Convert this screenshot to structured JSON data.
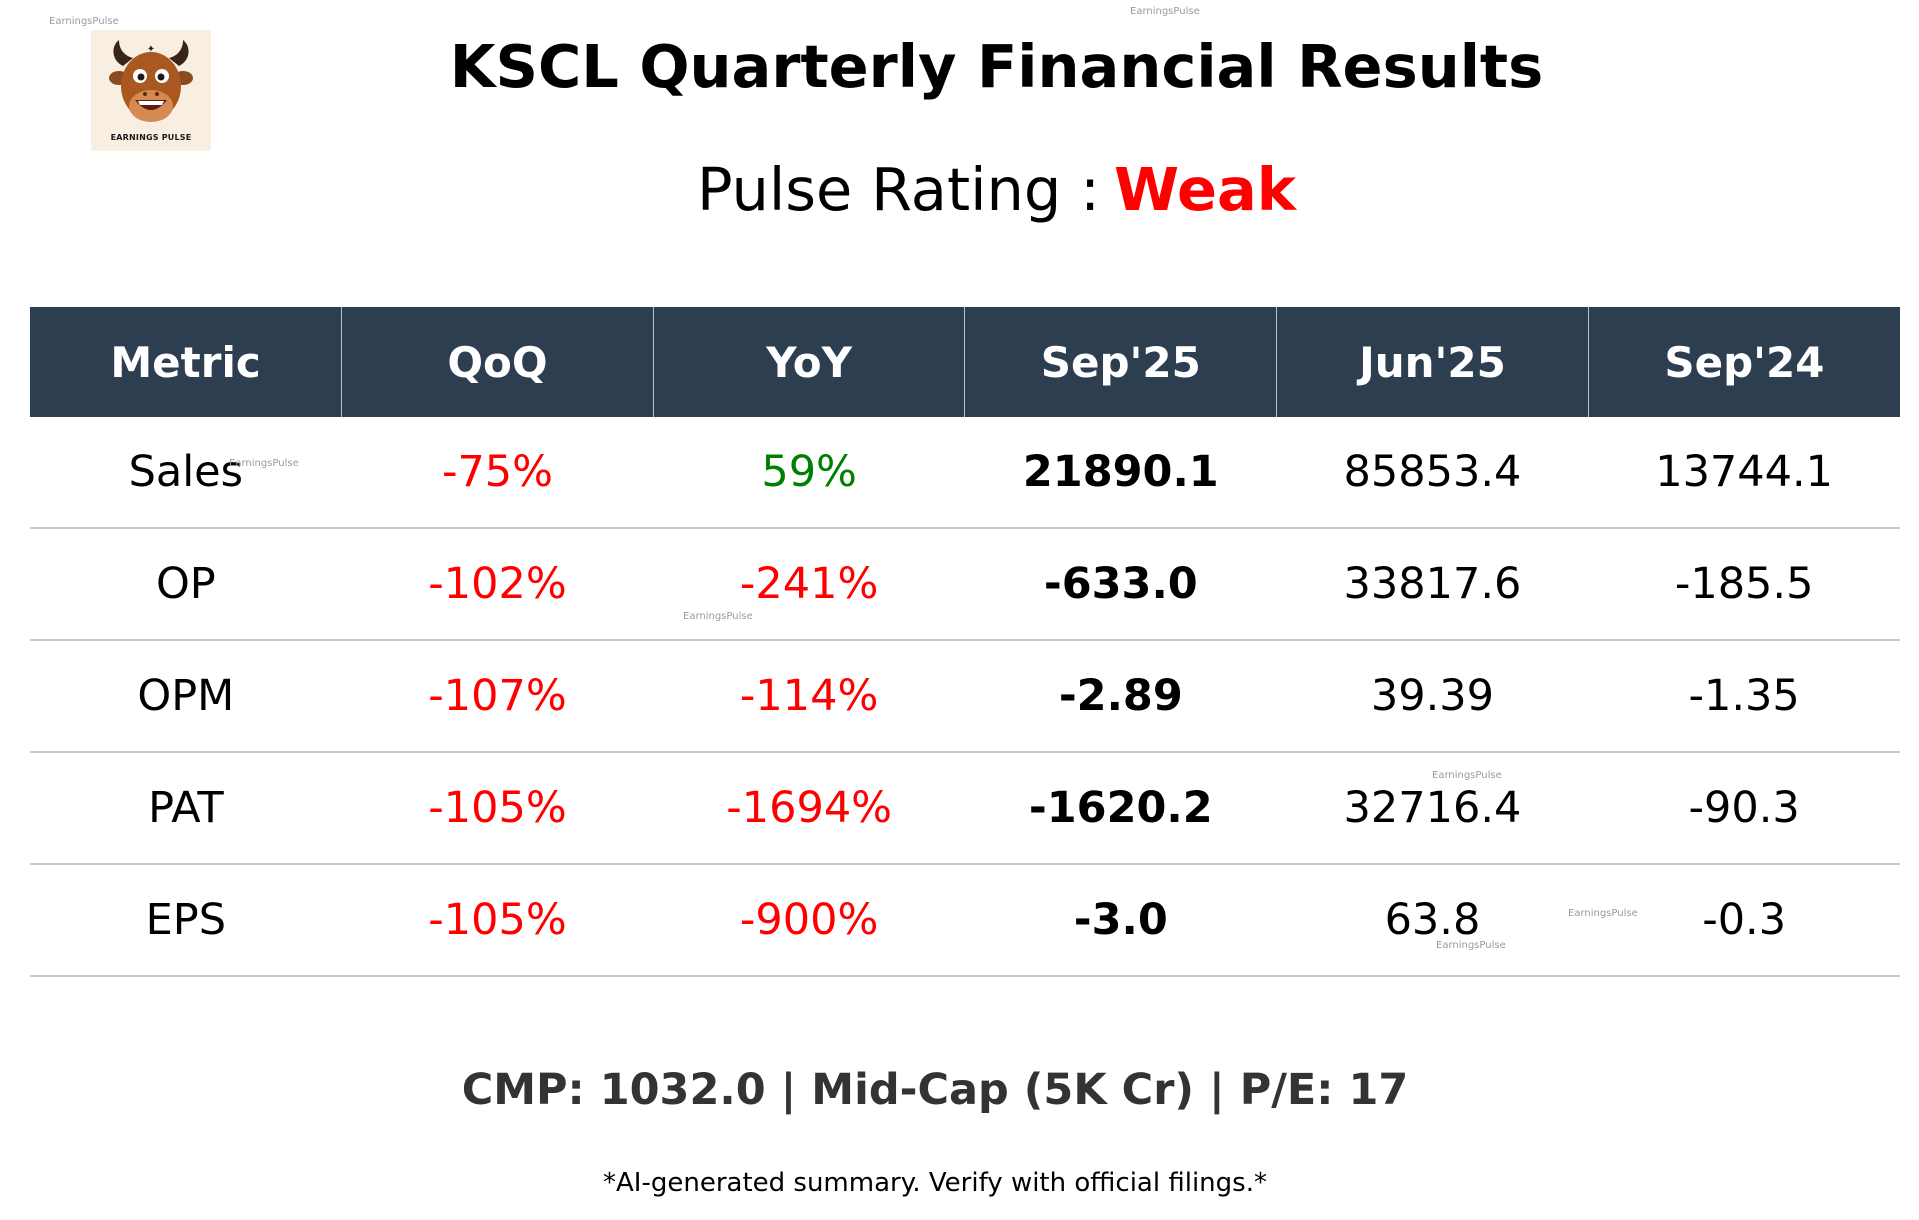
{
  "watermark": "EarningsPulse",
  "logo": {
    "text": "EARNINGS PULSE"
  },
  "title": "KSCL Quarterly Financial Results",
  "rating": {
    "label": "Pulse Rating :",
    "value": "Weak",
    "value_color": "#ff0000"
  },
  "table": {
    "headers": [
      "Metric",
      "QoQ",
      "YoY",
      "Sep'25",
      "Jun'25",
      "Sep'24"
    ],
    "rows": [
      {
        "metric": "Sales",
        "qoq": "-75%",
        "yoy": "59%",
        "sep25": "21890.1",
        "jun25": "85853.4",
        "sep24": "13744.1"
      },
      {
        "metric": "OP",
        "qoq": "-102%",
        "yoy": "-241%",
        "sep25": "-633.0",
        "jun25": "33817.6",
        "sep24": "-185.5"
      },
      {
        "metric": "OPM",
        "qoq": "-107%",
        "yoy": "-114%",
        "sep25": "-2.89",
        "jun25": "39.39",
        "sep24": "-1.35"
      },
      {
        "metric": "PAT",
        "qoq": "-105%",
        "yoy": "-1694%",
        "sep25": "-1620.2",
        "jun25": "32716.4",
        "sep24": "-90.3"
      },
      {
        "metric": "EPS",
        "qoq": "-105%",
        "yoy": "-900%",
        "sep25": "-3.0",
        "jun25": "63.8",
        "sep24": "-0.3"
      }
    ]
  },
  "footer": {
    "cmp_line": "CMP: 1032.0 | Mid-Cap (5K Cr) | P/E: 17",
    "disclaimer": "*AI-generated summary. Verify with official filings.*"
  },
  "colors": {
    "header_bg": "#2e3e51",
    "negative": "#ff0000",
    "positive": "#008000",
    "row_border": "#c8c8c8"
  }
}
